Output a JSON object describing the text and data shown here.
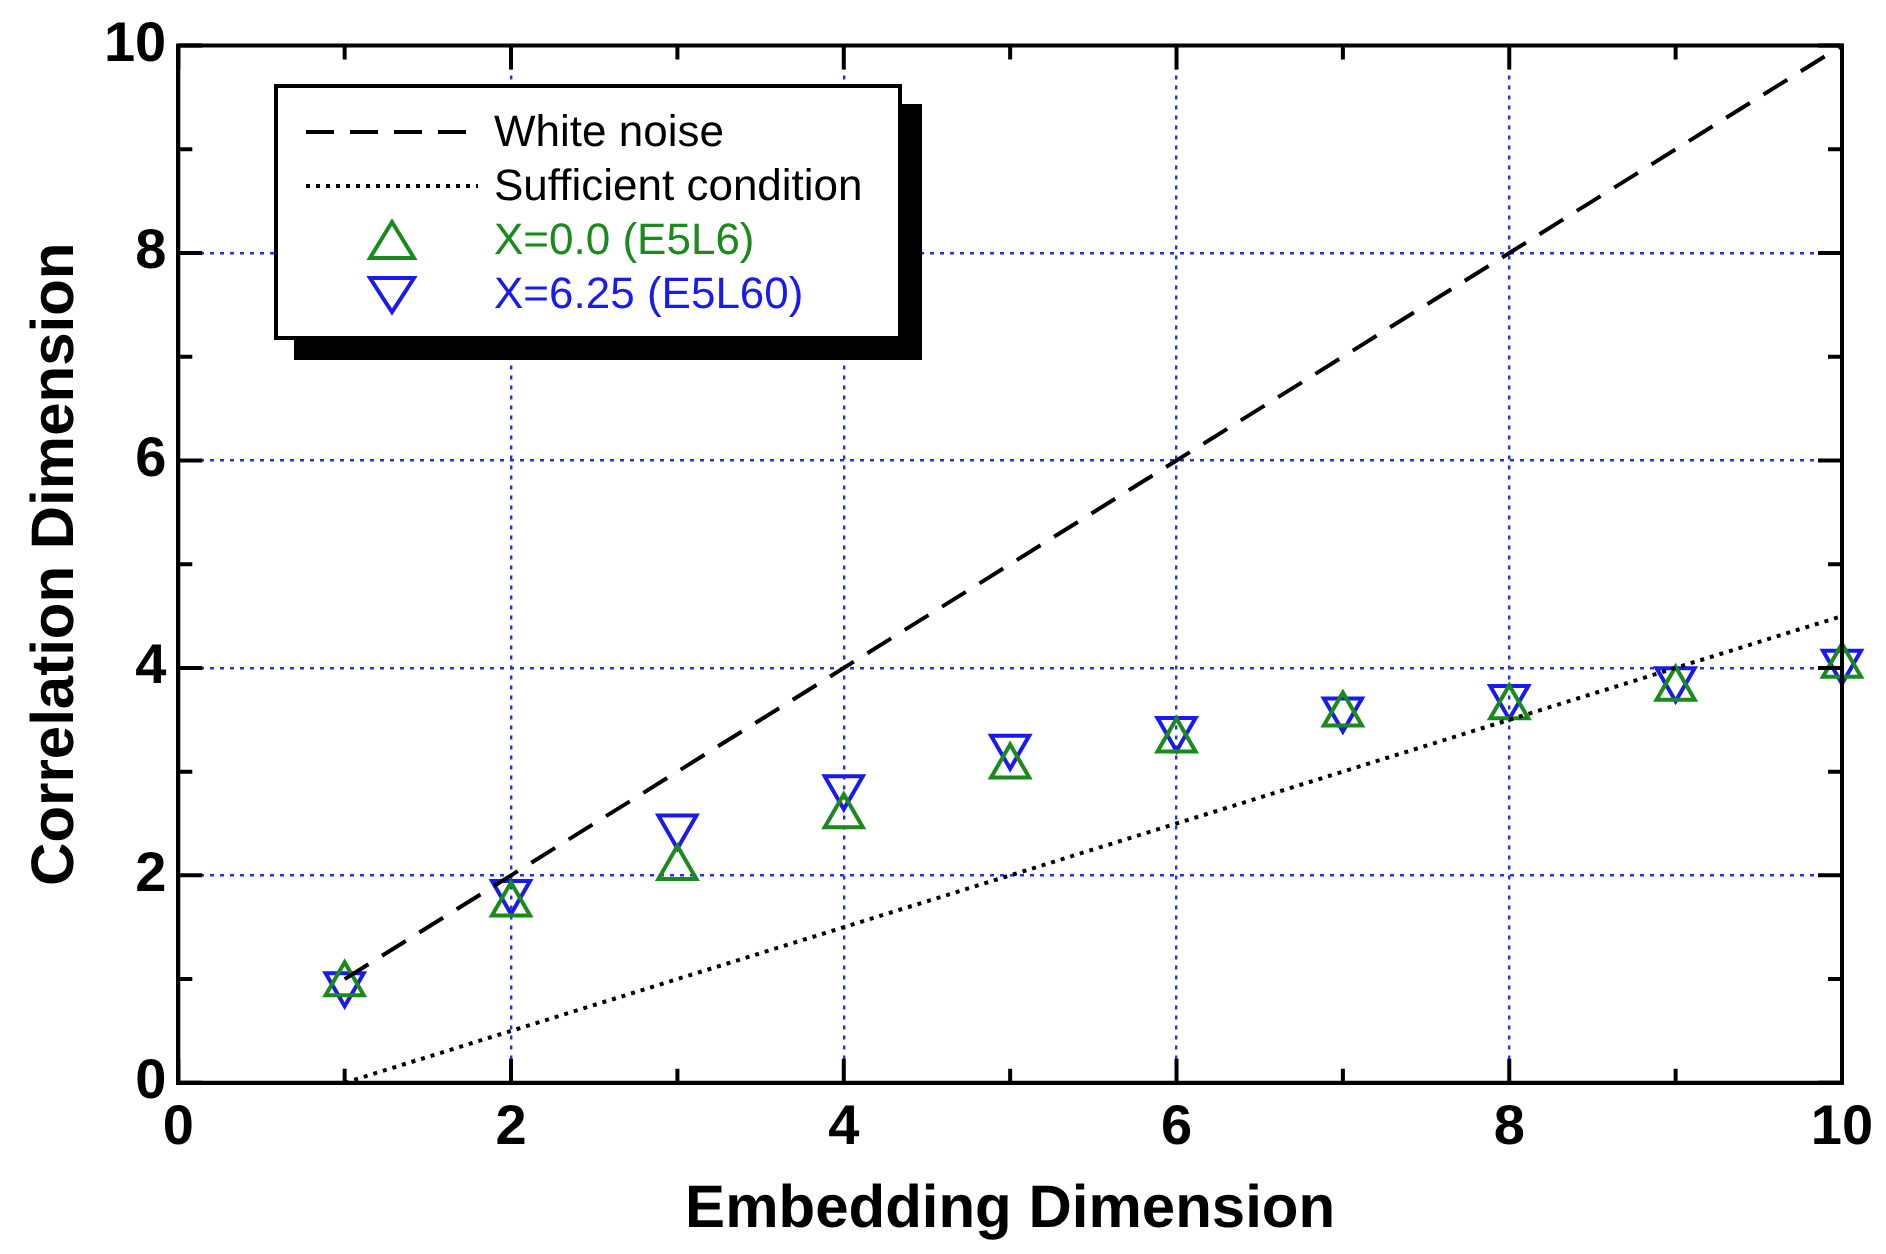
{
  "chart_data": {
    "type": "scatter",
    "xlabel": "Embedding Dimension",
    "ylabel": "Correlation Dimension",
    "xlim": [
      0,
      10
    ],
    "ylim": [
      0,
      10
    ],
    "xticks": [
      0,
      {
        "value": 1,
        "label": null
      },
      2,
      {
        "value": 3,
        "label": null
      },
      4,
      {
        "value": 5,
        "label": null
      },
      6,
      {
        "value": 7,
        "label": null
      },
      8,
      {
        "value": 9,
        "label": null
      },
      10
    ],
    "yticks": [
      0,
      {
        "value": 1,
        "label": null
      },
      2,
      {
        "value": 3,
        "label": null
      },
      4,
      {
        "value": 5,
        "label": null
      },
      6,
      {
        "value": 7,
        "label": null
      },
      8,
      {
        "value": 9,
        "label": null
      },
      10
    ],
    "grid": true,
    "legend": "top left",
    "series": [
      {
        "name": "White noise",
        "type": "line",
        "line_style": "dashed",
        "marker": "none",
        "color": "#000000",
        "x": [
          1,
          10
        ],
        "values": [
          1,
          10
        ]
      },
      {
        "name": "Sufficient condition",
        "type": "line",
        "line_style": "dotted",
        "marker": "none",
        "color": "#000000",
        "x": [
          1,
          2,
          3,
          4,
          5,
          6,
          7,
          8,
          9,
          10
        ],
        "values": [
          0,
          0.5,
          1,
          1.5,
          2,
          2.5,
          3,
          3.5,
          4,
          4.5
        ]
      },
      {
        "name": "X=0.0 (E5L6)",
        "type": "scatter",
        "marker": "triangle",
        "color": "#1a8a1a",
        "x": [
          1,
          2,
          3,
          4,
          5,
          6,
          7,
          8,
          9,
          10
        ],
        "values": [
          0.95,
          1.72,
          2.07,
          2.57,
          3.05,
          3.3,
          3.55,
          3.62,
          3.8,
          4.02
        ]
      },
      {
        "name": "X=6.25 (E5L60)",
        "type": "scatter",
        "marker": "triangle-down",
        "color": "#1a1aee",
        "x": [
          1,
          2,
          3,
          4,
          5,
          6,
          7,
          8,
          9,
          10
        ],
        "values": [
          0.95,
          1.84,
          2.47,
          2.85,
          3.24,
          3.41,
          3.6,
          3.72,
          3.89,
          4.06
        ]
      }
    ]
  }
}
